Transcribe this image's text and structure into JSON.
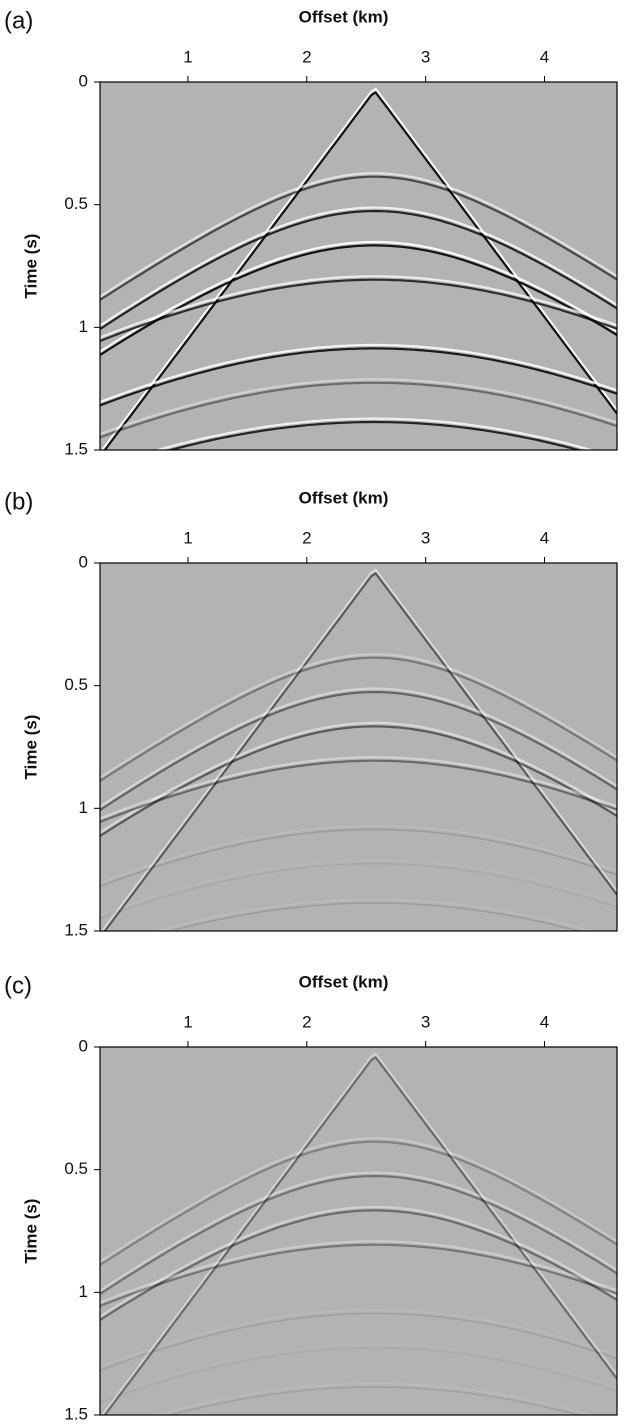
{
  "chart_data": [
    {
      "type": "gather",
      "panel_label": "(a)",
      "xlabel": "Offset (km)",
      "ylabel": "Time (s)",
      "xlim": [
        0.26,
        4.61
      ],
      "ylim": [
        0,
        1.5
      ],
      "xticks": [
        1,
        2,
        3,
        4
      ],
      "yticks": [
        0,
        0.5,
        1,
        1.5
      ]
    },
    {
      "type": "gather",
      "panel_label": "(b)",
      "xlabel": "Offset (km)",
      "ylabel": "Time (s)",
      "xlim": [
        0.26,
        4.61
      ],
      "ylim": [
        0,
        1.5
      ],
      "xticks": [
        1,
        2,
        3,
        4
      ],
      "yticks": [
        0,
        0.5,
        1,
        1.5
      ]
    },
    {
      "type": "gather",
      "panel_label": "(c)",
      "xlabel": "Offset (km)",
      "ylabel": "Time (s)",
      "xlim": [
        0.26,
        4.61
      ],
      "ylim": [
        0,
        1.5
      ],
      "xticks": [
        1,
        2,
        3,
        4
      ],
      "yticks": [
        0,
        0.5,
        1,
        1.5
      ]
    }
  ]
}
